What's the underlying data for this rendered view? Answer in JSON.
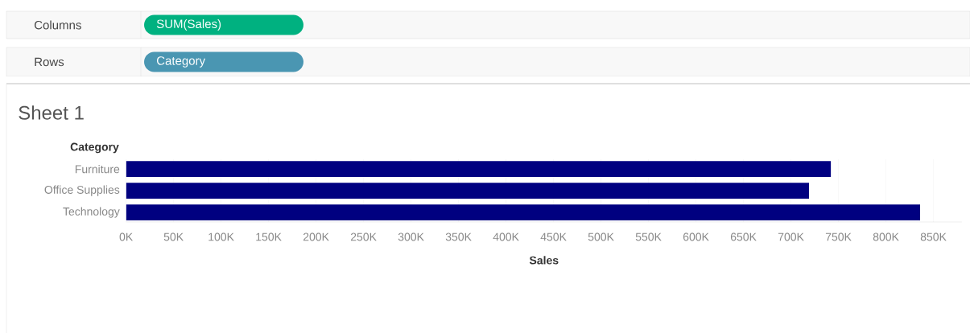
{
  "chart_data": {
    "type": "bar",
    "orientation": "horizontal",
    "title": "Sheet 1",
    "xlabel": "Sales",
    "ylabel": "Category",
    "categories": [
      "Furniture",
      "Office Supplies",
      "Technology"
    ],
    "values": [
      742000,
      719000,
      836000
    ],
    "color": "#000080",
    "xlim": [
      0,
      880000
    ],
    "xticks": [
      {
        "value": 0,
        "label": "0K"
      },
      {
        "value": 50000,
        "label": "50K"
      },
      {
        "value": 100000,
        "label": "100K"
      },
      {
        "value": 150000,
        "label": "150K"
      },
      {
        "value": 200000,
        "label": "200K"
      },
      {
        "value": 250000,
        "label": "250K"
      },
      {
        "value": 300000,
        "label": "300K"
      },
      {
        "value": 350000,
        "label": "350K"
      },
      {
        "value": 400000,
        "label": "400K"
      },
      {
        "value": 450000,
        "label": "450K"
      },
      {
        "value": 500000,
        "label": "500K"
      },
      {
        "value": 550000,
        "label": "550K"
      },
      {
        "value": 600000,
        "label": "600K"
      },
      {
        "value": 650000,
        "label": "650K"
      },
      {
        "value": 700000,
        "label": "700K"
      },
      {
        "value": 750000,
        "label": "750K"
      },
      {
        "value": 800000,
        "label": "800K"
      },
      {
        "value": 850000,
        "label": "850K"
      }
    ],
    "grid": "x",
    "annotations": [
      "Columns",
      "SUM(Sales)",
      "Rows",
      "Category"
    ]
  }
}
